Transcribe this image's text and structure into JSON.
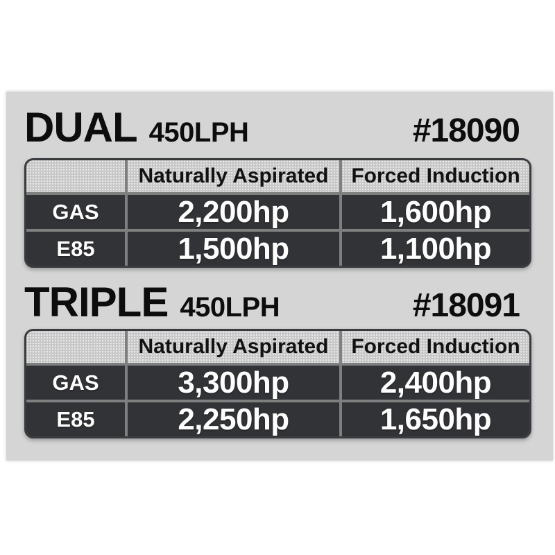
{
  "colors": {
    "page_background": "#ffffff",
    "canvas_background": "#d4d5d4",
    "header_cell": "#c6c7c6",
    "dark_cell": "#323336",
    "gridline": "#7e807f",
    "table_border": "#3a3b3e",
    "title_text": "#0d0d0d",
    "value_text": "#fdfdfd"
  },
  "sections": [
    {
      "title": "DUAL",
      "subtitle": "450LPH",
      "part_number": "#18090",
      "table": {
        "columns": [
          "",
          "Naturally Aspirated",
          "Forced Induction"
        ],
        "rows": [
          {
            "label": "GAS",
            "values": [
              "2,200hp",
              "1,600hp"
            ]
          },
          {
            "label": "E85",
            "values": [
              "1,500hp",
              "1,100hp"
            ]
          }
        ]
      }
    },
    {
      "title": "TRIPLE",
      "subtitle": "450LPH",
      "part_number": "#18091",
      "table": {
        "columns": [
          "",
          "Naturally Aspirated",
          "Forced Induction"
        ],
        "rows": [
          {
            "label": "GAS",
            "values": [
              "3,300hp",
              "2,400hp"
            ]
          },
          {
            "label": "E85",
            "values": [
              "2,250hp",
              "1,650hp"
            ]
          }
        ]
      }
    }
  ],
  "chart_data": [
    {
      "type": "table",
      "title": "DUAL 450LPH",
      "part_number": "#18090",
      "columns": [
        "",
        "Naturally Aspirated",
        "Forced Induction"
      ],
      "rows": [
        [
          "GAS",
          "2,200hp",
          "1,600hp"
        ],
        [
          "E85",
          "1,500hp",
          "1,100hp"
        ]
      ]
    },
    {
      "type": "table",
      "title": "TRIPLE 450LPH",
      "part_number": "#18091",
      "columns": [
        "",
        "Naturally Aspirated",
        "Forced Induction"
      ],
      "rows": [
        [
          "GAS",
          "3,300hp",
          "2,400hp"
        ],
        [
          "E85",
          "2,250hp",
          "1,650hp"
        ]
      ]
    }
  ]
}
